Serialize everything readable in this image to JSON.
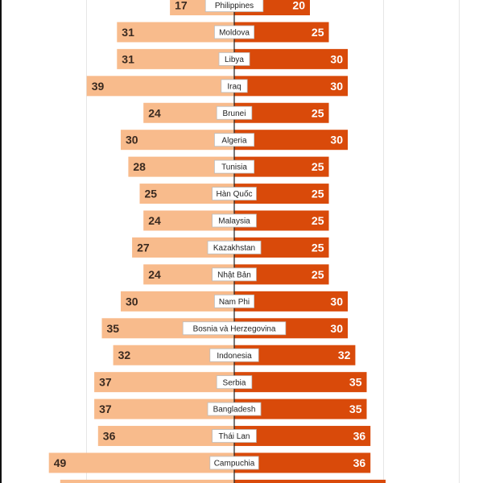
{
  "colors": {
    "left_bar": "#f8bb8c",
    "right_bar": "#d94a0a",
    "left_value_text": "#3a2a20",
    "right_value_text": "#ffffff",
    "label_bg": "#ffffff",
    "label_border": "#bdbdbd",
    "center_line": "#222222"
  },
  "chart_data": {
    "type": "bar",
    "orientation": "horizontal-diverging",
    "title": "",
    "xlabel": "",
    "ylabel": "",
    "grid": true,
    "categories": [
      "Philippines",
      "Moldova",
      "Libya",
      "Iraq",
      "Brunei",
      "Algeria",
      "Tunisia",
      "Hàn Quốc",
      "Malaysia",
      "Kazakhstan",
      "Nhật Bản",
      "Nam Phi",
      "Bosnia và Herzegovina",
      "Indonesia",
      "Serbia",
      "Bangladesh",
      "Thái Lan",
      "Campuchia",
      ""
    ],
    "series": [
      {
        "side": "left",
        "values": [
          17,
          31,
          31,
          39,
          24,
          30,
          28,
          25,
          24,
          27,
          24,
          30,
          35,
          32,
          37,
          37,
          36,
          49,
          46
        ]
      },
      {
        "side": "right",
        "values": [
          20,
          25,
          30,
          30,
          25,
          30,
          25,
          25,
          25,
          25,
          25,
          30,
          30,
          32,
          35,
          35,
          36,
          36,
          40
        ]
      }
    ],
    "value_labels_visible_rows": 18
  }
}
